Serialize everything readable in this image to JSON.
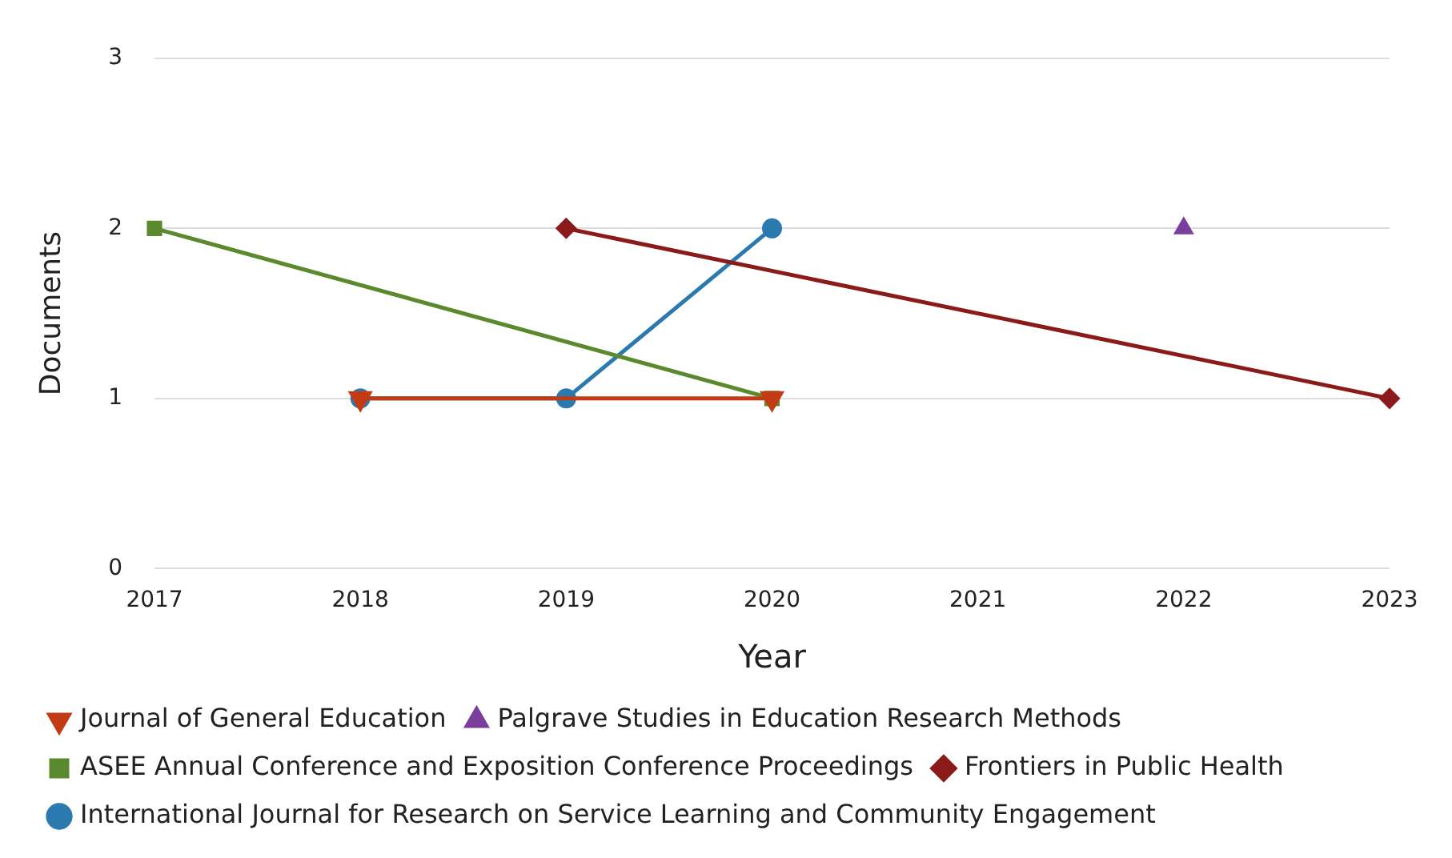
{
  "chart_data": {
    "type": "line",
    "xlabel": "Year",
    "ylabel": "Documents",
    "categories": [
      "2017",
      "2018",
      "2019",
      "2020",
      "2021",
      "2022",
      "2023"
    ],
    "ylim": [
      0,
      3
    ],
    "yticks": [
      0,
      1,
      2,
      3
    ],
    "grid": "y",
    "legend": "bottom",
    "series": [
      {
        "name": "International Journal for Research on Service Learning and Community Engagement",
        "color": "#2a7ab0",
        "marker": "circle",
        "values": [
          null,
          1,
          1,
          2,
          null,
          null,
          null
        ]
      },
      {
        "name": "Frontiers in Public Health",
        "color": "#8b1a1a",
        "marker": "diamond",
        "values": [
          null,
          null,
          2,
          null,
          null,
          null,
          1
        ]
      },
      {
        "name": "ASEE Annual Conference and Exposition Conference Proceedings",
        "color": "#5b8a2e",
        "marker": "square",
        "values": [
          2,
          null,
          null,
          1,
          null,
          null,
          null
        ]
      },
      {
        "name": "Palgrave Studies in Education Research Methods",
        "color": "#7a3f9d",
        "marker": "triangle",
        "values": [
          null,
          null,
          null,
          null,
          null,
          2,
          null
        ]
      },
      {
        "name": "Journal of General Education",
        "color": "#c23b14",
        "marker": "triangle-down",
        "values": [
          null,
          1,
          null,
          1,
          null,
          null,
          null
        ]
      }
    ]
  }
}
